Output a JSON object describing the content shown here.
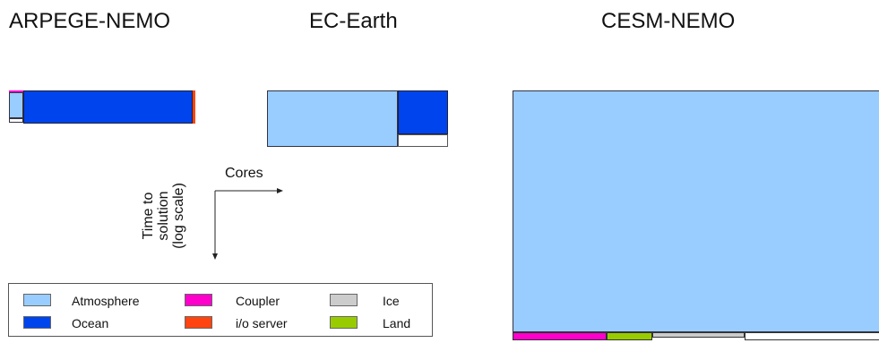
{
  "titles": {
    "arpege": "ARPEGE-NEMO",
    "ecearth": "EC-Earth",
    "cesm": "CESM-NEMO"
  },
  "axes": {
    "x_label": "Cores",
    "y_label_line1": "Time to",
    "y_label_line2": "solution",
    "y_label_line3": "(log scale)"
  },
  "colors": {
    "atmosphere": "#99ccff",
    "ocean": "#0044ee",
    "coupler": "#ff00cc",
    "io_server": "#ff4411",
    "ice": "#cccccc",
    "land": "#99cc00"
  },
  "legend": [
    {
      "label": "Atmosphere",
      "color": "#99ccff"
    },
    {
      "label": "Ocean",
      "color": "#0044ee"
    },
    {
      "label": "Coupler",
      "color": "#ff00cc"
    },
    {
      "label": "i/o server",
      "color": "#ff4411"
    },
    {
      "label": "Ice",
      "color": "#cccccc"
    },
    {
      "label": "Land",
      "color": "#99cc00"
    }
  ]
}
